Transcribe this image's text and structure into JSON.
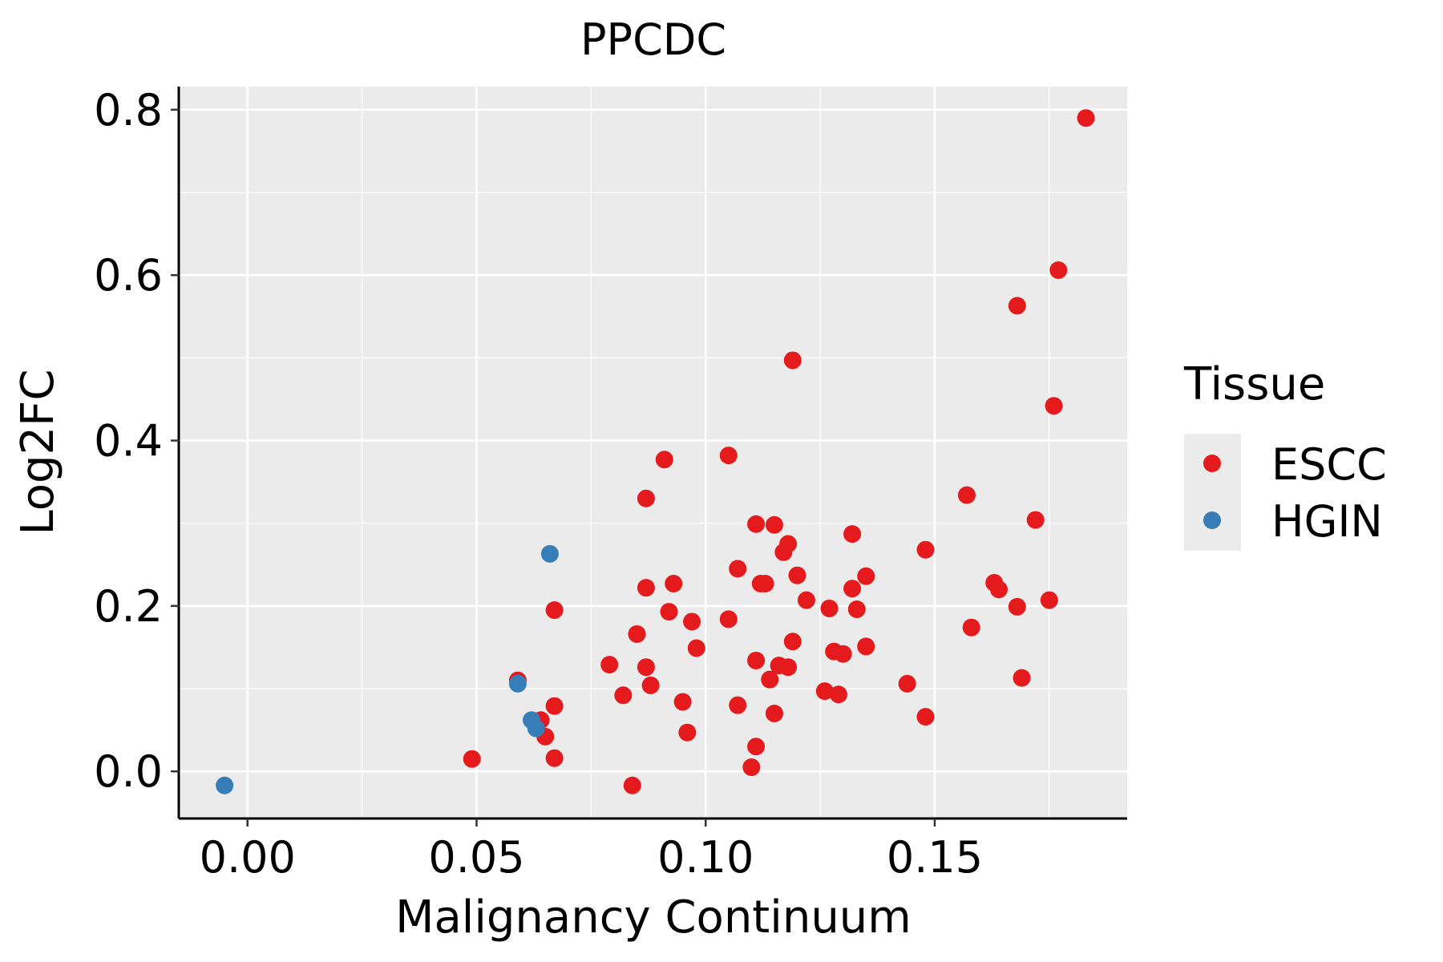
{
  "chart_data": {
    "type": "scatter",
    "title": "PPCDC",
    "xlabel": "Malignancy Continuum",
    "ylabel": "Log2FC",
    "xlim": [
      -0.015,
      0.192
    ],
    "ylim": [
      -0.057,
      0.828
    ],
    "xticks": [
      0.0,
      0.05,
      0.1,
      0.15
    ],
    "xtick_labels": [
      "0.00",
      "0.05",
      "0.10",
      "0.15"
    ],
    "yticks": [
      0.0,
      0.2,
      0.4,
      0.6,
      0.8
    ],
    "ytick_labels": [
      "0.0",
      "0.2",
      "0.4",
      "0.6",
      "0.8"
    ],
    "grid": true,
    "legend": {
      "title": "Tissue",
      "position": "right"
    },
    "series": [
      {
        "name": "ESCC",
        "color": "#e41a1c",
        "points": [
          [
            0.049,
            0.015
          ],
          [
            0.059,
            0.11
          ],
          [
            0.064,
            0.062
          ],
          [
            0.065,
            0.042
          ],
          [
            0.067,
            0.195
          ],
          [
            0.067,
            0.079
          ],
          [
            0.067,
            0.016
          ],
          [
            0.079,
            0.129
          ],
          [
            0.082,
            0.092
          ],
          [
            0.084,
            -0.017
          ],
          [
            0.085,
            0.166
          ],
          [
            0.087,
            0.33
          ],
          [
            0.087,
            0.222
          ],
          [
            0.087,
            0.126
          ],
          [
            0.088,
            0.104
          ],
          [
            0.091,
            0.377
          ],
          [
            0.092,
            0.193
          ],
          [
            0.093,
            0.227
          ],
          [
            0.095,
            0.084
          ],
          [
            0.096,
            0.047
          ],
          [
            0.097,
            0.181
          ],
          [
            0.098,
            0.149
          ],
          [
            0.105,
            0.382
          ],
          [
            0.105,
            0.184
          ],
          [
            0.107,
            0.245
          ],
          [
            0.107,
            0.08
          ],
          [
            0.11,
            0.005
          ],
          [
            0.111,
            0.299
          ],
          [
            0.111,
            0.134
          ],
          [
            0.111,
            0.03
          ],
          [
            0.112,
            0.227
          ],
          [
            0.113,
            0.227
          ],
          [
            0.114,
            0.111
          ],
          [
            0.115,
            0.298
          ],
          [
            0.115,
            0.07
          ],
          [
            0.116,
            0.128
          ],
          [
            0.117,
            0.265
          ],
          [
            0.118,
            0.275
          ],
          [
            0.118,
            0.126
          ],
          [
            0.119,
            0.497
          ],
          [
            0.119,
            0.157
          ],
          [
            0.12,
            0.237
          ],
          [
            0.122,
            0.207
          ],
          [
            0.126,
            0.097
          ],
          [
            0.127,
            0.197
          ],
          [
            0.128,
            0.145
          ],
          [
            0.129,
            0.093
          ],
          [
            0.13,
            0.142
          ],
          [
            0.132,
            0.287
          ],
          [
            0.132,
            0.221
          ],
          [
            0.133,
            0.196
          ],
          [
            0.135,
            0.236
          ],
          [
            0.135,
            0.151
          ],
          [
            0.144,
            0.106
          ],
          [
            0.148,
            0.066
          ],
          [
            0.148,
            0.268
          ],
          [
            0.157,
            0.334
          ],
          [
            0.158,
            0.174
          ],
          [
            0.163,
            0.228
          ],
          [
            0.164,
            0.22
          ],
          [
            0.168,
            0.563
          ],
          [
            0.168,
            0.199
          ],
          [
            0.169,
            0.113
          ],
          [
            0.172,
            0.304
          ],
          [
            0.175,
            0.207
          ],
          [
            0.176,
            0.442
          ],
          [
            0.177,
            0.606
          ],
          [
            0.183,
            0.79
          ]
        ]
      },
      {
        "name": "HGIN",
        "color": "#377eb8",
        "points": [
          [
            -0.005,
            -0.017
          ],
          [
            0.059,
            0.106
          ],
          [
            0.062,
            0.062
          ],
          [
            0.063,
            0.052
          ],
          [
            0.066,
            0.263
          ]
        ]
      }
    ]
  }
}
